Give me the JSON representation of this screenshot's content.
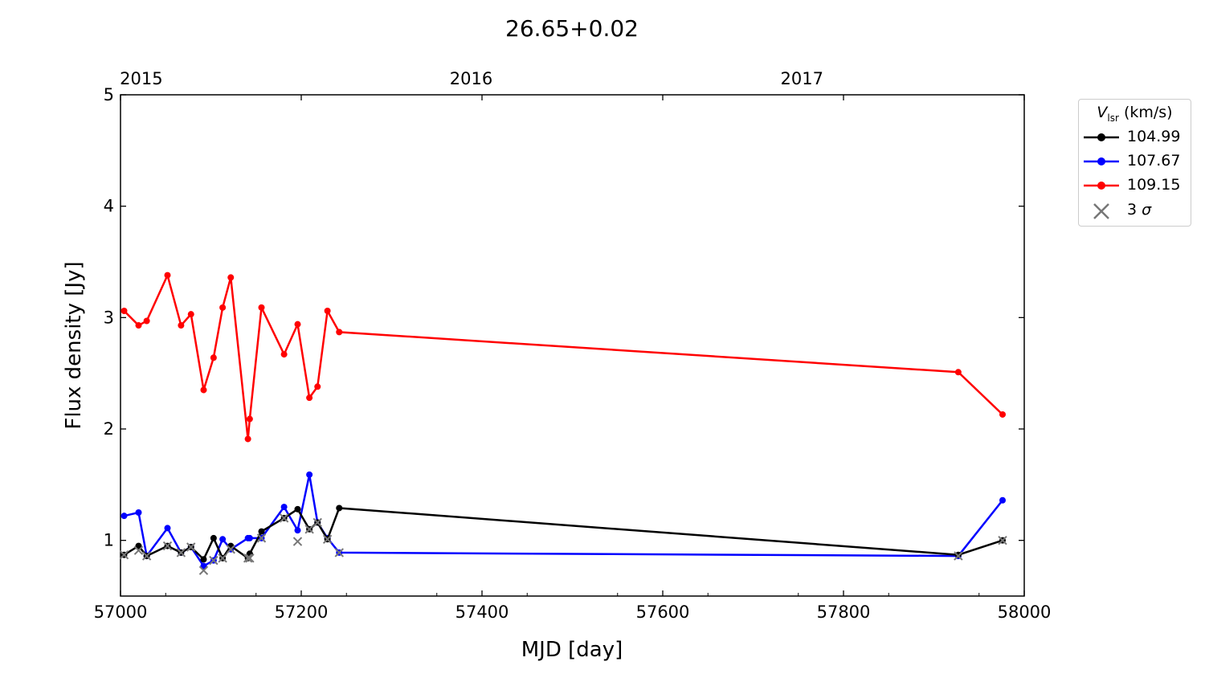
{
  "chart_data": {
    "type": "line",
    "title": "26.65+0.02",
    "xlabel": "MJD [day]",
    "ylabel": "Flux density [Jy]",
    "xlim": [
      57000,
      58000
    ],
    "ylim": [
      0.5,
      5
    ],
    "xticks": [
      "57000",
      "57200",
      "57400",
      "57600",
      "57800",
      "58000"
    ],
    "yticks": [
      "1",
      "2",
      "3",
      "4",
      "5"
    ],
    "top_axis": {
      "labels": [
        "2015",
        "2016",
        "2017"
      ],
      "mjd": [
        57023,
        57388,
        57754
      ]
    },
    "legend": {
      "title": "V_lsr (km/s)",
      "title_main": "V",
      "title_sub": "lsr",
      "title_unit": " (km/s)",
      "placement": "right-outside"
    },
    "x": [
      57004,
      57020,
      57029,
      57052,
      57067,
      57078,
      57092,
      57103,
      57113,
      57122,
      57141,
      57143,
      57156,
      57181,
      57196,
      57209,
      57218,
      57229,
      57242,
      57927,
      57976
    ],
    "series": [
      {
        "name": "104.99",
        "color": "#000000",
        "values": [
          0.87,
          0.95,
          0.86,
          0.95,
          0.89,
          0.94,
          0.83,
          1.02,
          0.84,
          0.95,
          0.84,
          0.88,
          1.08,
          1.2,
          1.28,
          1.1,
          1.16,
          1.01,
          1.29,
          0.87,
          1.0
        ]
      },
      {
        "name": "107.67",
        "color": "#0000ff",
        "values": [
          1.22,
          1.25,
          0.86,
          1.11,
          0.89,
          0.94,
          0.77,
          0.82,
          1.01,
          0.92,
          1.02,
          1.02,
          1.02,
          1.3,
          1.09,
          1.59,
          1.16,
          1.02,
          0.89,
          0.86,
          1.36
        ]
      },
      {
        "name": "109.15",
        "color": "#ff0000",
        "values": [
          3.06,
          2.93,
          2.97,
          3.38,
          2.93,
          3.03,
          2.35,
          2.64,
          3.09,
          3.36,
          1.91,
          2.09,
          3.09,
          2.67,
          2.94,
          2.28,
          2.38,
          3.06,
          2.87,
          2.51,
          2.13
        ]
      }
    ],
    "sigma": {
      "name": "3 σ",
      "label": "3",
      "sym": "σ",
      "color": "#777777",
      "values": [
        0.87,
        0.91,
        0.86,
        0.95,
        0.89,
        0.94,
        0.73,
        0.82,
        0.84,
        0.92,
        0.84,
        0.84,
        1.02,
        1.2,
        0.99,
        1.1,
        1.16,
        1.01,
        0.89,
        0.86,
        1.0
      ]
    }
  }
}
